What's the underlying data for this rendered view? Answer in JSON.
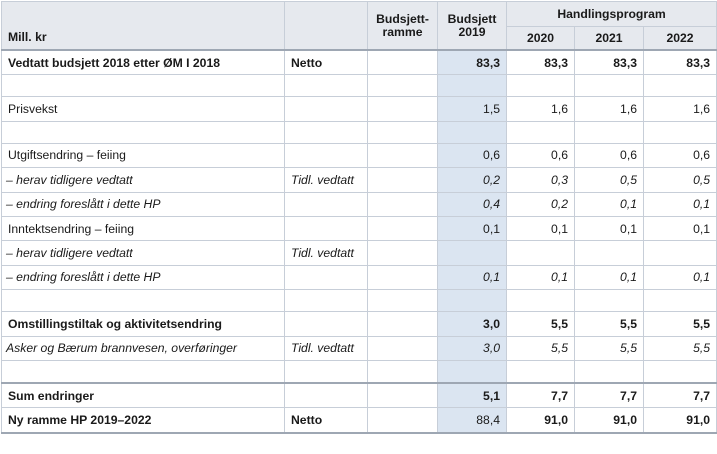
{
  "header": {
    "unit_label": "Mill. kr",
    "budsjettramme_line1": "Budsjett-",
    "budsjettramme_line2": "ramme",
    "budsjett2019_line1": "Budsjett",
    "budsjett2019_line2": "2019",
    "handlingsprogram": "Handlingsprogram",
    "years": [
      "2020",
      "2021",
      "2022"
    ]
  },
  "rows": [
    {
      "label": "Vedtatt budsjett 2018 etter ØM I 2018",
      "note": "Netto",
      "ramme": "",
      "b2019": "83,3",
      "y2020": "83,3",
      "y2021": "83,3",
      "y2022": "83,3"
    },
    {
      "label": "",
      "note": "",
      "ramme": "",
      "b2019": "",
      "y2020": "",
      "y2021": "",
      "y2022": ""
    },
    {
      "label": "Prisvekst",
      "note": "",
      "ramme": "",
      "b2019": "1,5",
      "y2020": "1,6",
      "y2021": "1,6",
      "y2022": "1,6"
    },
    {
      "label": "",
      "note": "",
      "ramme": "",
      "b2019": "",
      "y2020": "",
      "y2021": "",
      "y2022": ""
    },
    {
      "label": "Utgiftsendring – feiing",
      "note": "",
      "ramme": "",
      "b2019": "0,6",
      "y2020": "0,6",
      "y2021": "0,6",
      "y2022": "0,6"
    },
    {
      "label": "– herav tidligere vedtatt",
      "note": "Tidl. vedtatt",
      "ramme": "",
      "b2019": "0,2",
      "y2020": "0,3",
      "y2021": "0,5",
      "y2022": "0,5"
    },
    {
      "label": "– endring foreslått i dette HP",
      "note": "",
      "ramme": "",
      "b2019": "0,4",
      "y2020": "0,2",
      "y2021": "0,1",
      "y2022": "0,1"
    },
    {
      "label": "Inntektsendring – feiing",
      "note": "",
      "ramme": "",
      "b2019": "0,1",
      "y2020": "0,1",
      "y2021": "0,1",
      "y2022": "0,1"
    },
    {
      "label": "– herav tidligere vedtatt",
      "note": "Tidl. vedtatt",
      "ramme": "",
      "b2019": "",
      "y2020": "",
      "y2021": "",
      "y2022": ""
    },
    {
      "label": "– endring foreslått i dette HP",
      "note": "",
      "ramme": "",
      "b2019": "0,1",
      "y2020": "0,1",
      "y2021": "0,1",
      "y2022": "0,1"
    },
    {
      "label": "",
      "note": "",
      "ramme": "",
      "b2019": "",
      "y2020": "",
      "y2021": "",
      "y2022": ""
    },
    {
      "label": "Omstillingstiltak og aktivitetsendring",
      "note": "",
      "ramme": "",
      "b2019": "3,0",
      "y2020": "5,5",
      "y2021": "5,5",
      "y2022": "5,5"
    },
    {
      "label": "Asker og Bærum brannvesen, overføringer",
      "note": "Tidl. vedtatt",
      "ramme": "",
      "b2019": "3,0",
      "y2020": "5,5",
      "y2021": "5,5",
      "y2022": "5,5"
    },
    {
      "label": "",
      "note": "",
      "ramme": "",
      "b2019": "",
      "y2020": "",
      "y2021": "",
      "y2022": ""
    },
    {
      "label": "Sum endringer",
      "note": "",
      "ramme": "",
      "b2019": "5,1",
      "y2020": "7,7",
      "y2021": "7,7",
      "y2022": "7,7"
    },
    {
      "label": "Ny ramme HP 2019–2022",
      "note": "Netto",
      "ramme": "",
      "b2019": "88,4",
      "y2020": "91,0",
      "y2021": "91,0",
      "y2022": "91,0"
    }
  ]
}
